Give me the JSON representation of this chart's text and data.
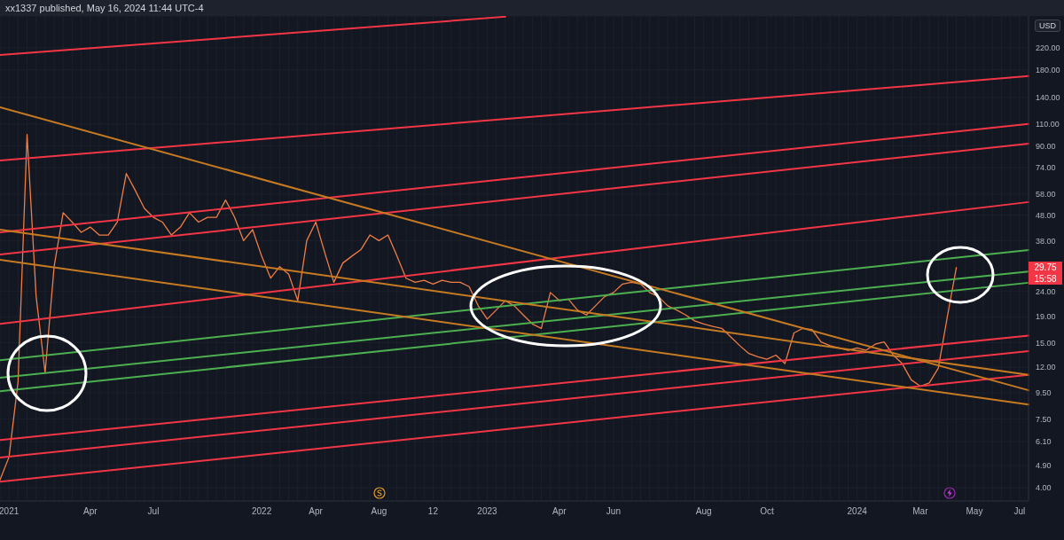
{
  "chart_data": {
    "type": "line",
    "title": "xx1337 published, May 16, 2024 11:44 UTC-4",
    "ylabel": "USD",
    "log": true,
    "grid": true,
    "ylim": [
      3.55,
      294
    ],
    "yticks": [
      {
        "value": 4,
        "label": "4.00"
      },
      {
        "value": 4.9,
        "label": "4.90"
      },
      {
        "value": 6.1,
        "label": "6.10"
      },
      {
        "value": 7.5,
        "label": "7.50"
      },
      {
        "value": 9.5,
        "label": "9.50"
      },
      {
        "value": 12,
        "label": "12.00"
      },
      {
        "value": 15,
        "label": "15.00"
      },
      {
        "value": 19,
        "label": "19.00"
      },
      {
        "value": 24,
        "label": "24.00"
      },
      {
        "value": 38,
        "label": "38.00"
      },
      {
        "value": 48,
        "label": "48.00"
      },
      {
        "value": 58,
        "label": "58.00"
      },
      {
        "value": 74,
        "label": "74.00"
      },
      {
        "value": 90,
        "label": "90.00"
      },
      {
        "value": 110,
        "label": "110.00"
      },
      {
        "value": 140,
        "label": "140.00"
      },
      {
        "value": 180,
        "label": "180.00"
      },
      {
        "value": 220,
        "label": "220.00"
      }
    ],
    "categories": [
      null,
      "2021",
      null,
      null,
      null,
      null,
      null,
      null,
      null,
      null,
      "Apr",
      null,
      null,
      null,
      null,
      null,
      null,
      "Jul",
      null,
      null,
      null,
      null,
      null,
      null,
      null,
      null,
      null,
      null,
      null,
      "2022",
      null,
      null,
      null,
      null,
      null,
      "Apr",
      null,
      null,
      null,
      null,
      null,
      null,
      "Aug",
      null,
      null,
      null,
      null,
      null,
      "12",
      null,
      null,
      null,
      null,
      null,
      "2023",
      null,
      null,
      null,
      null,
      null,
      null,
      null,
      "Apr",
      null,
      null,
      null,
      null,
      null,
      "Jun",
      null,
      null,
      null,
      null,
      null,
      null,
      null,
      null,
      null,
      "Aug",
      null,
      null,
      null,
      null,
      null,
      null,
      "Oct",
      null,
      null,
      null,
      null,
      null,
      null,
      null,
      null,
      null,
      "2024",
      null,
      null,
      null,
      null,
      null,
      null,
      "Mar",
      null,
      null,
      null,
      null,
      null,
      "May",
      null,
      null,
      null,
      null,
      "Jul",
      null
    ],
    "annotations": [
      "29.75",
      "15:58"
    ],
    "series": [
      {
        "color": "#ef7d45",
        "values": [
          4.3,
          5.3,
          10.5,
          100,
          23,
          11.4,
          30,
          49,
          45,
          41,
          43,
          40,
          40,
          45,
          70,
          60,
          51,
          47,
          45,
          40,
          43,
          49,
          45,
          47,
          47,
          55,
          47,
          38,
          42,
          33,
          27,
          30,
          28,
          22,
          38,
          45,
          34,
          26,
          31,
          33,
          35,
          40,
          38,
          40,
          33,
          27,
          26,
          26.5,
          25.6,
          26.5,
          26,
          26,
          25,
          21,
          18.6,
          20.2,
          22,
          21,
          19.3,
          17.8,
          17.1,
          23.7,
          22,
          22.3,
          20.2,
          19.3,
          21,
          22.8,
          23.7,
          25.6,
          26,
          25.6,
          23.7,
          22.8,
          21,
          20.2,
          19.3,
          18.3,
          17.8,
          17.4,
          17.1,
          15.8,
          14.6,
          13.6,
          13.2,
          12.9,
          13.4,
          12.4,
          16.4,
          17.1,
          16.9,
          15.1,
          14.6,
          14.3,
          14.0,
          14.3,
          14.0,
          14.8,
          15.1,
          13.4,
          12.4,
          10.7,
          10.1,
          10.4,
          11.9,
          19,
          29.75,
          null,
          null,
          null,
          null,
          null,
          null,
          null,
          null
        ]
      },
      {
        "color": "#f23645",
        "values": [
          206,
          null,
          null,
          null,
          null,
          null,
          null,
          null,
          null,
          null,
          null,
          null,
          null,
          null,
          null,
          null,
          null,
          null,
          null,
          null,
          null,
          null,
          null,
          null,
          null,
          null,
          null,
          null,
          null,
          null,
          null,
          null,
          null,
          null,
          null,
          null,
          null,
          null,
          null,
          null,
          null,
          null,
          null,
          null,
          null,
          null,
          null,
          null,
          null,
          null,
          null,
          null,
          null,
          null,
          null,
          null,
          292,
          null,
          null,
          null,
          null,
          null,
          null,
          null,
          null,
          null,
          null,
          null,
          null,
          null,
          null,
          null,
          null,
          null,
          null,
          null,
          null,
          null,
          null,
          null,
          null,
          null,
          null,
          null,
          null,
          null,
          null,
          null,
          null,
          null,
          null,
          null,
          null,
          null,
          null,
          null,
          null,
          null,
          null,
          null,
          null,
          null,
          null,
          null,
          null,
          null,
          null,
          null,
          null,
          null,
          null,
          null,
          null,
          null,
          null
        ]
      },
      {
        "color": "#f23645",
        "values": [
          78.8,
          null,
          null,
          null,
          null,
          null,
          null,
          null,
          null,
          null,
          null,
          null,
          null,
          null,
          null,
          null,
          null,
          null,
          null,
          null,
          null,
          null,
          null,
          null,
          null,
          null,
          null,
          null,
          null,
          null,
          null,
          null,
          null,
          null,
          null,
          null,
          null,
          null,
          null,
          null,
          null,
          null,
          null,
          null,
          null,
          null,
          null,
          null,
          null,
          null,
          null,
          null,
          null,
          null,
          null,
          null,
          null,
          null,
          null,
          null,
          null,
          null,
          null,
          null,
          null,
          null,
          null,
          null,
          null,
          null,
          null,
          null,
          null,
          null,
          null,
          null,
          null,
          null,
          null,
          null,
          null,
          null,
          null,
          null,
          null,
          null,
          null,
          null,
          null,
          null,
          null,
          null,
          null,
          null,
          null,
          null,
          null,
          null,
          null,
          null,
          null,
          null,
          null,
          null,
          null,
          null,
          null,
          null,
          null,
          null,
          null,
          null,
          null,
          null,
          170
        ]
      },
      {
        "color": "#f23645",
        "values": [
          41,
          null,
          null,
          null,
          null,
          null,
          null,
          null,
          null,
          null,
          null,
          null,
          null,
          null,
          null,
          null,
          null,
          null,
          null,
          null,
          null,
          null,
          null,
          null,
          null,
          null,
          null,
          null,
          null,
          null,
          null,
          null,
          null,
          null,
          null,
          null,
          null,
          null,
          null,
          null,
          null,
          null,
          null,
          null,
          null,
          null,
          null,
          null,
          null,
          null,
          null,
          null,
          null,
          null,
          null,
          null,
          null,
          null,
          null,
          null,
          null,
          null,
          null,
          null,
          null,
          null,
          null,
          null,
          null,
          null,
          null,
          null,
          null,
          null,
          null,
          null,
          null,
          null,
          null,
          null,
          null,
          null,
          null,
          null,
          null,
          null,
          null,
          null,
          null,
          null,
          null,
          null,
          null,
          null,
          null,
          null,
          null,
          null,
          null,
          null,
          null,
          null,
          null,
          null,
          null,
          null,
          null,
          null,
          null,
          null,
          null,
          null,
          null,
          null,
          110
        ]
      },
      {
        "color": "#f23645",
        "values": [
          33.5,
          null,
          null,
          null,
          null,
          null,
          null,
          null,
          null,
          null,
          null,
          null,
          null,
          null,
          null,
          null,
          null,
          null,
          null,
          null,
          null,
          null,
          null,
          null,
          null,
          null,
          null,
          null,
          null,
          null,
          null,
          null,
          null,
          null,
          null,
          null,
          null,
          null,
          null,
          null,
          null,
          null,
          null,
          null,
          null,
          null,
          null,
          null,
          null,
          null,
          null,
          null,
          null,
          null,
          null,
          null,
          null,
          null,
          null,
          null,
          null,
          null,
          null,
          null,
          null,
          null,
          null,
          null,
          null,
          null,
          null,
          null,
          null,
          null,
          null,
          null,
          null,
          null,
          null,
          null,
          null,
          null,
          null,
          null,
          null,
          null,
          null,
          null,
          null,
          null,
          null,
          null,
          null,
          null,
          null,
          null,
          null,
          null,
          null,
          null,
          null,
          null,
          null,
          null,
          null,
          null,
          null,
          null,
          null,
          null,
          null,
          null,
          null,
          null,
          92
        ]
      },
      {
        "color": "#f23645",
        "values": [
          17.8,
          null,
          null,
          null,
          null,
          null,
          null,
          null,
          null,
          null,
          null,
          null,
          null,
          null,
          null,
          null,
          null,
          null,
          null,
          null,
          null,
          null,
          null,
          null,
          null,
          null,
          null,
          null,
          null,
          null,
          null,
          null,
          null,
          null,
          null,
          null,
          null,
          null,
          null,
          null,
          null,
          null,
          null,
          null,
          null,
          null,
          null,
          null,
          null,
          null,
          null,
          null,
          null,
          null,
          null,
          null,
          null,
          null,
          null,
          null,
          null,
          null,
          null,
          null,
          null,
          null,
          null,
          null,
          null,
          null,
          null,
          null,
          null,
          null,
          null,
          null,
          null,
          null,
          null,
          null,
          null,
          null,
          null,
          null,
          null,
          null,
          null,
          null,
          null,
          null,
          null,
          null,
          null,
          null,
          null,
          null,
          null,
          null,
          null,
          null,
          null,
          null,
          null,
          null,
          null,
          null,
          null,
          null,
          null,
          null,
          null,
          null,
          null,
          null,
          54
        ]
      },
      {
        "color": "#4caf50",
        "values": [
          12.8,
          null,
          null,
          null,
          null,
          null,
          null,
          null,
          null,
          null,
          null,
          null,
          null,
          null,
          null,
          null,
          null,
          null,
          null,
          null,
          null,
          null,
          null,
          null,
          null,
          null,
          null,
          null,
          null,
          null,
          null,
          null,
          null,
          null,
          null,
          null,
          null,
          null,
          null,
          null,
          null,
          null,
          null,
          null,
          null,
          null,
          null,
          null,
          null,
          null,
          null,
          null,
          null,
          null,
          null,
          null,
          null,
          null,
          null,
          null,
          null,
          null,
          null,
          null,
          null,
          null,
          null,
          null,
          null,
          null,
          null,
          null,
          null,
          null,
          null,
          null,
          null,
          null,
          null,
          null,
          null,
          null,
          null,
          null,
          null,
          null,
          null,
          null,
          null,
          null,
          null,
          null,
          null,
          null,
          null,
          null,
          null,
          null,
          null,
          null,
          null,
          null,
          null,
          null,
          null,
          null,
          null,
          null,
          null,
          null,
          null,
          null,
          null,
          null,
          34.9
        ]
      },
      {
        "color": "#4caf50",
        "values": [
          10.9,
          null,
          null,
          null,
          null,
          null,
          null,
          null,
          null,
          null,
          null,
          null,
          null,
          null,
          null,
          null,
          null,
          null,
          null,
          null,
          null,
          null,
          null,
          null,
          null,
          null,
          null,
          null,
          null,
          null,
          null,
          null,
          null,
          null,
          null,
          null,
          null,
          null,
          null,
          null,
          null,
          null,
          null,
          null,
          null,
          null,
          null,
          null,
          null,
          null,
          null,
          null,
          null,
          null,
          null,
          null,
          null,
          null,
          null,
          null,
          null,
          null,
          null,
          null,
          null,
          null,
          null,
          null,
          null,
          null,
          null,
          null,
          null,
          null,
          null,
          null,
          null,
          null,
          null,
          null,
          null,
          null,
          null,
          null,
          null,
          null,
          null,
          null,
          null,
          null,
          null,
          null,
          null,
          null,
          null,
          null,
          null,
          null,
          null,
          null,
          null,
          null,
          null,
          null,
          null,
          null,
          null,
          null,
          null,
          null,
          null,
          null,
          null,
          null,
          28.7
        ]
      },
      {
        "color": "#4caf50",
        "values": [
          9.65,
          null,
          null,
          null,
          null,
          null,
          null,
          null,
          null,
          null,
          null,
          null,
          null,
          null,
          null,
          null,
          null,
          null,
          null,
          null,
          null,
          null,
          null,
          null,
          null,
          null,
          null,
          null,
          null,
          null,
          null,
          null,
          null,
          null,
          null,
          null,
          null,
          null,
          null,
          null,
          null,
          null,
          null,
          null,
          null,
          null,
          null,
          null,
          null,
          null,
          null,
          null,
          null,
          null,
          null,
          null,
          null,
          null,
          null,
          null,
          null,
          null,
          null,
          null,
          null,
          null,
          null,
          null,
          null,
          null,
          null,
          null,
          null,
          null,
          null,
          null,
          null,
          null,
          null,
          null,
          null,
          null,
          null,
          null,
          null,
          null,
          null,
          null,
          null,
          null,
          null,
          null,
          null,
          null,
          null,
          null,
          null,
          null,
          null,
          null,
          null,
          null,
          null,
          null,
          null,
          null,
          null,
          null,
          null,
          null,
          null,
          null,
          null,
          null,
          25.9
        ]
      },
      {
        "color": "#f23645",
        "values": [
          6.19,
          null,
          null,
          null,
          null,
          null,
          null,
          null,
          null,
          null,
          null,
          null,
          null,
          null,
          null,
          null,
          null,
          null,
          null,
          null,
          null,
          null,
          null,
          null,
          null,
          null,
          null,
          null,
          null,
          null,
          null,
          null,
          null,
          null,
          null,
          null,
          null,
          null,
          null,
          null,
          null,
          null,
          null,
          null,
          null,
          null,
          null,
          null,
          null,
          null,
          null,
          null,
          null,
          null,
          null,
          null,
          null,
          null,
          null,
          null,
          null,
          null,
          null,
          null,
          null,
          null,
          null,
          null,
          null,
          null,
          null,
          null,
          null,
          null,
          null,
          null,
          null,
          null,
          null,
          null,
          null,
          null,
          null,
          null,
          null,
          null,
          null,
          null,
          null,
          null,
          null,
          null,
          null,
          null,
          null,
          null,
          null,
          null,
          null,
          null,
          null,
          null,
          null,
          null,
          null,
          null,
          null,
          null,
          null,
          null,
          null,
          null,
          null,
          null,
          16
        ]
      },
      {
        "color": "#f23645",
        "values": [
          5.27,
          null,
          null,
          null,
          null,
          null,
          null,
          null,
          null,
          null,
          null,
          null,
          null,
          null,
          null,
          null,
          null,
          null,
          null,
          null,
          null,
          null,
          null,
          null,
          null,
          null,
          null,
          null,
          null,
          null,
          null,
          null,
          null,
          null,
          null,
          null,
          null,
          null,
          null,
          null,
          null,
          null,
          null,
          null,
          null,
          null,
          null,
          null,
          null,
          null,
          null,
          null,
          null,
          null,
          null,
          null,
          null,
          null,
          null,
          null,
          null,
          null,
          null,
          null,
          null,
          null,
          null,
          null,
          null,
          null,
          null,
          null,
          null,
          null,
          null,
          null,
          null,
          null,
          null,
          null,
          null,
          null,
          null,
          null,
          null,
          null,
          null,
          null,
          null,
          null,
          null,
          null,
          null,
          null,
          null,
          null,
          null,
          null,
          null,
          null,
          null,
          null,
          null,
          null,
          null,
          null,
          null,
          null,
          null,
          null,
          null,
          null,
          null,
          null,
          13.9
        ]
      },
      {
        "color": "#f23645",
        "values": [
          4.23,
          null,
          null,
          null,
          null,
          null,
          null,
          null,
          null,
          null,
          null,
          null,
          null,
          null,
          null,
          null,
          null,
          null,
          null,
          null,
          null,
          null,
          null,
          null,
          null,
          null,
          null,
          null,
          null,
          null,
          null,
          null,
          null,
          null,
          null,
          null,
          null,
          null,
          null,
          null,
          null,
          null,
          null,
          null,
          null,
          null,
          null,
          null,
          null,
          null,
          null,
          null,
          null,
          null,
          null,
          null,
          null,
          null,
          null,
          null,
          null,
          null,
          null,
          null,
          null,
          null,
          null,
          null,
          null,
          null,
          null,
          null,
          null,
          null,
          null,
          null,
          null,
          null,
          null,
          null,
          null,
          null,
          null,
          null,
          null,
          null,
          null,
          null,
          null,
          null,
          null,
          null,
          null,
          null,
          null,
          null,
          null,
          null,
          null,
          null,
          null,
          null,
          null,
          null,
          null,
          null,
          null,
          null,
          null,
          null,
          null,
          null,
          null,
          null,
          11.2
        ]
      },
      {
        "color": "#c67a22",
        "values": [
          128,
          null,
          null,
          null,
          null,
          null,
          null,
          null,
          null,
          null,
          null,
          null,
          null,
          null,
          null,
          null,
          null,
          null,
          null,
          null,
          null,
          null,
          null,
          null,
          null,
          null,
          null,
          null,
          null,
          null,
          null,
          null,
          null,
          null,
          null,
          null,
          null,
          null,
          null,
          null,
          null,
          null,
          null,
          null,
          null,
          null,
          null,
          null,
          null,
          null,
          null,
          null,
          null,
          null,
          null,
          null,
          null,
          null,
          null,
          null,
          null,
          null,
          null,
          null,
          null,
          null,
          null,
          null,
          null,
          null,
          null,
          null,
          null,
          null,
          null,
          null,
          null,
          null,
          null,
          null,
          null,
          null,
          null,
          null,
          null,
          null,
          null,
          null,
          null,
          null,
          null,
          null,
          null,
          null,
          null,
          null,
          null,
          null,
          null,
          null,
          null,
          null,
          null,
          null,
          null,
          null,
          null,
          null,
          null,
          null,
          null,
          null,
          null,
          null,
          9.73
        ]
      },
      {
        "color": "#c67a22",
        "values": [
          42,
          null,
          null,
          null,
          null,
          null,
          null,
          null,
          null,
          null,
          null,
          null,
          null,
          null,
          null,
          null,
          null,
          null,
          null,
          null,
          null,
          null,
          null,
          null,
          null,
          null,
          null,
          null,
          null,
          null,
          null,
          null,
          null,
          null,
          null,
          null,
          null,
          null,
          null,
          null,
          null,
          null,
          null,
          null,
          null,
          null,
          null,
          null,
          null,
          null,
          null,
          null,
          null,
          null,
          null,
          null,
          null,
          null,
          null,
          null,
          null,
          null,
          null,
          null,
          null,
          null,
          null,
          null,
          null,
          null,
          null,
          null,
          null,
          null,
          null,
          null,
          null,
          null,
          null,
          null,
          null,
          null,
          null,
          null,
          null,
          null,
          null,
          null,
          null,
          null,
          null,
          null,
          null,
          null,
          null,
          null,
          null,
          null,
          null,
          null,
          null,
          null,
          null,
          null,
          null,
          null,
          null,
          null,
          null,
          null,
          null,
          null,
          null,
          null,
          11.2
        ]
      },
      {
        "color": "#c67a22",
        "values": [
          31.9,
          null,
          null,
          null,
          null,
          null,
          null,
          null,
          null,
          null,
          null,
          null,
          null,
          null,
          null,
          null,
          null,
          null,
          null,
          null,
          null,
          null,
          null,
          null,
          null,
          null,
          null,
          null,
          null,
          null,
          null,
          null,
          null,
          null,
          null,
          null,
          null,
          null,
          null,
          null,
          null,
          null,
          null,
          null,
          null,
          null,
          null,
          null,
          null,
          null,
          null,
          null,
          null,
          null,
          null,
          null,
          null,
          null,
          null,
          null,
          null,
          null,
          null,
          null,
          null,
          null,
          null,
          null,
          null,
          null,
          null,
          null,
          null,
          null,
          null,
          null,
          null,
          null,
          null,
          null,
          null,
          null,
          null,
          null,
          null,
          null,
          null,
          null,
          null,
          null,
          null,
          null,
          null,
          null,
          null,
          null,
          null,
          null,
          null,
          null,
          null,
          null,
          null,
          null,
          null,
          null,
          null,
          null,
          null,
          null,
          null,
          null,
          null,
          null,
          8.54
        ]
      }
    ]
  }
}
